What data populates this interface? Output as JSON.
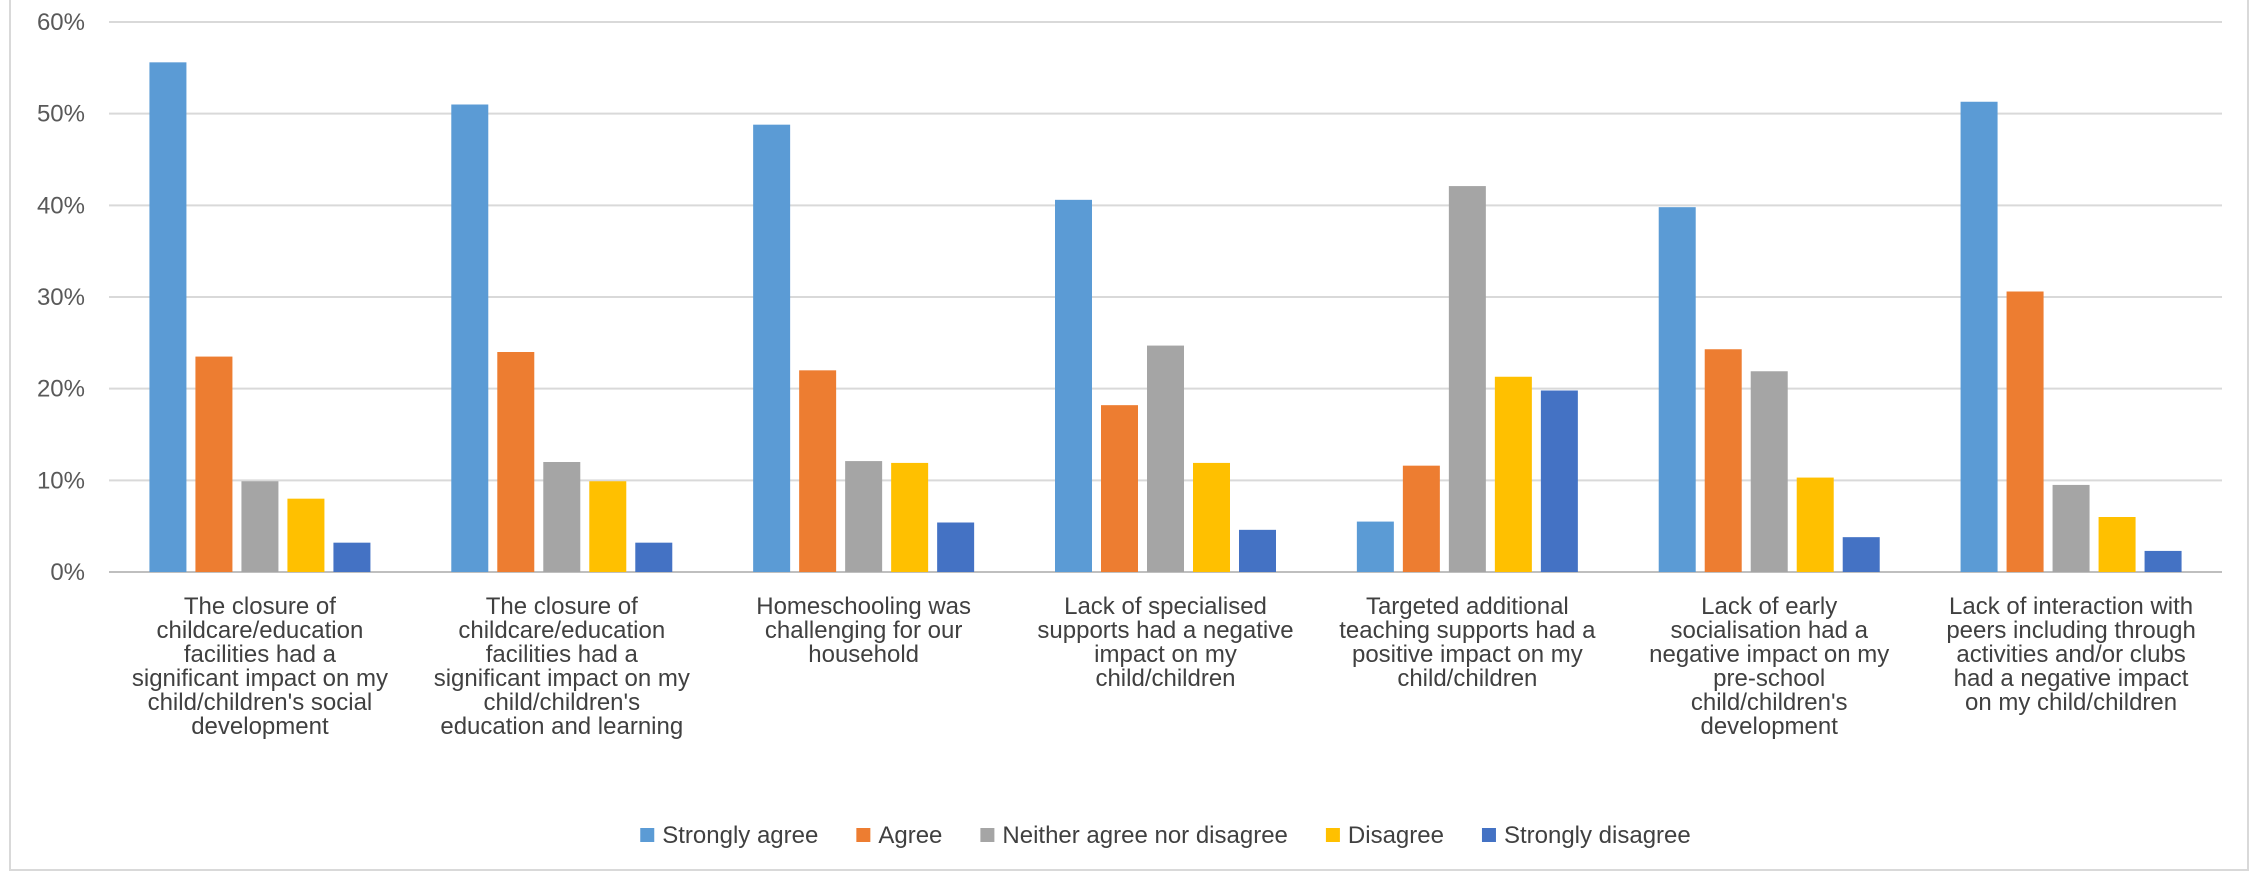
{
  "chart_data": {
    "type": "bar",
    "title": "",
    "xlabel": "",
    "ylabel": "",
    "ylim": [
      0,
      0.6
    ],
    "yticks": [
      "0%",
      "10%",
      "20%",
      "30%",
      "40%",
      "50%",
      "60%"
    ],
    "grid": true,
    "legend_position": "bottom",
    "categories": [
      [
        "The closure of",
        "childcare/education",
        "facilities had a",
        "significant impact on my",
        "child/children's social",
        "development"
      ],
      [
        "The closure of",
        "childcare/education",
        "facilities had a",
        "significant impact on my",
        "child/children's",
        "education and learning"
      ],
      [
        "Homeschooling was",
        "challenging for our",
        "household"
      ],
      [
        "Lack of specialised",
        "supports had a negative",
        "impact on my",
        "child/children"
      ],
      [
        "Targeted additional",
        "teaching supports had a",
        "positive impact on my",
        "child/children"
      ],
      [
        "Lack of early",
        "socialisation had a",
        "negative impact on my",
        "pre-school",
        "child/children's",
        "development"
      ],
      [
        "Lack of interaction with",
        "peers including through",
        "activities and/or clubs",
        "had a negative impact",
        "on my child/children"
      ]
    ],
    "series": [
      {
        "name": "Strongly agree",
        "color": "#5b9bd5",
        "values": [
          0.556,
          0.51,
          0.488,
          0.406,
          0.055,
          0.398,
          0.513
        ]
      },
      {
        "name": "Agree",
        "color": "#ed7d31",
        "values": [
          0.235,
          0.24,
          0.22,
          0.182,
          0.116,
          0.243,
          0.306
        ]
      },
      {
        "name": "Neither agree nor disagree",
        "color": "#a5a5a5",
        "values": [
          0.099,
          0.12,
          0.121,
          0.247,
          0.421,
          0.219,
          0.095
        ]
      },
      {
        "name": "Disagree",
        "color": "#ffc000",
        "values": [
          0.08,
          0.099,
          0.119,
          0.119,
          0.213,
          0.103,
          0.06
        ]
      },
      {
        "name": "Strongly disagree",
        "color": "#4472c4",
        "values": [
          0.032,
          0.032,
          0.054,
          0.046,
          0.198,
          0.038,
          0.023
        ]
      }
    ]
  }
}
